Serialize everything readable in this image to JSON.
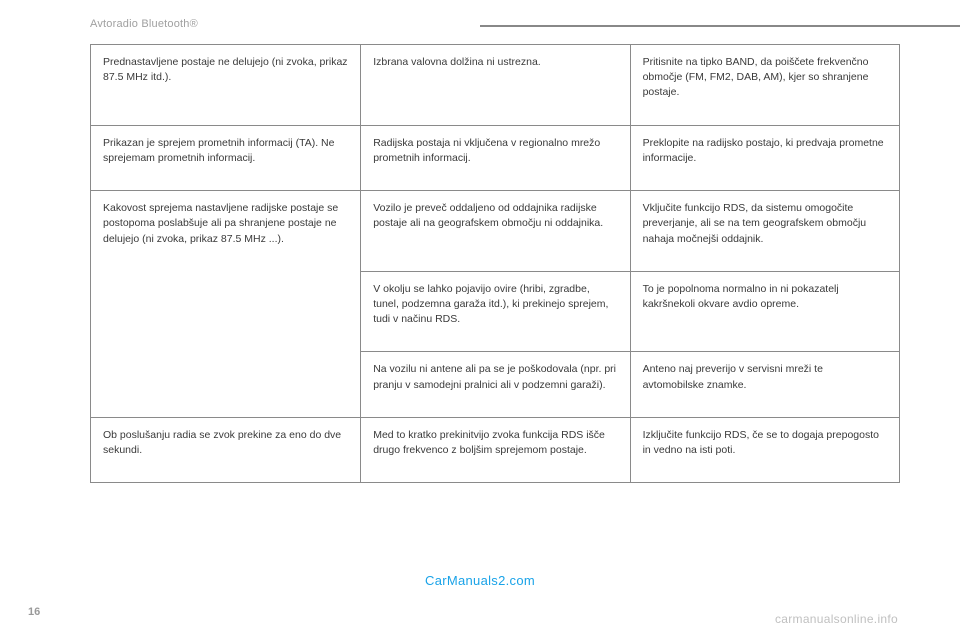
{
  "header": {
    "title": "Avtoradio Bluetooth®"
  },
  "table": {
    "type": "table",
    "columns": [
      "problem",
      "cause",
      "solution"
    ],
    "col_widths": [
      "33.4%",
      "33.3%",
      "33.3%"
    ],
    "border_color": "#8a8a8a",
    "text_color": "#3a3a3a",
    "font_size": 10.5,
    "rows": [
      {
        "problem": "Prednastavljene postaje ne delujejo (ni zvoka, prikaz 87.5 MHz itd.).",
        "cause": "Izbrana valovna dolžina ni ustrezna.",
        "solution": "Pritisnite na tipko BAND, da poiščete frekvenčno območje (FM, FM2, DAB, AM), kjer so shranjene postaje.",
        "rowspan_problem": 1
      },
      {
        "problem": "Prikazan je sprejem prometnih informacij (TA). Ne sprejemam prometnih informacij.",
        "cause": "Radijska postaja ni vključena v regionalno mrežo prometnih informacij.",
        "solution": "Preklopite na radijsko postajo, ki predvaja prometne informacije.",
        "rowspan_problem": 1
      },
      {
        "problem": "Kakovost sprejema nastavljene radijske postaje se postopoma poslabšuje ali pa shranjene postaje ne delujejo (ni zvoka, prikaz 87.5 MHz ...).",
        "cause": "Vozilo je preveč oddaljeno od oddajnika radijske postaje ali na geografskem območju ni oddajnika.",
        "solution": "Vključite funkcijo RDS, da sistemu omogočite preverjanje, ali se na tem geografskem območju nahaja močnejši oddajnik.",
        "rowspan_problem": 3
      },
      {
        "problem": "",
        "cause": "V okolju se lahko pojavijo ovire (hribi, zgradbe, tunel, podzemna garaža itd.), ki prekinejo sprejem, tudi v načinu RDS.",
        "solution": "To je popolnoma normalno in ni pokazatelj kakršnekoli okvare avdio opreme.",
        "rowspan_problem": 0
      },
      {
        "problem": "",
        "cause": "Na vozilu ni antene ali pa se je poškodovala (npr. pri pranju v samodejni pralnici ali v podzemni garaži).",
        "solution": "Anteno naj preverijo v servisni mreži te avtomobilske znamke.",
        "rowspan_problem": 0
      },
      {
        "problem": "Ob poslušanju radia se zvok prekine za eno do dve sekundi.",
        "cause": "Med to kratko prekinitvijo zvoka funkcija RDS išče drugo frekvenco z boljšim sprejemom postaje.",
        "solution": "Izključite funkcijo RDS, če se to dogaja prepogosto in vedno na isti poti.",
        "rowspan_problem": 1
      }
    ]
  },
  "watermarks": {
    "blue": "CarManuals2.com",
    "gray": "carmanualsonline.info"
  },
  "page_number": "16",
  "colors": {
    "header_text": "#a0a0a0",
    "hr": "#888888",
    "blue_wm": "#1aa3e8",
    "gray_wm": "#c0c0c0",
    "page_num": "#9a9a9a",
    "background": "#ffffff"
  }
}
